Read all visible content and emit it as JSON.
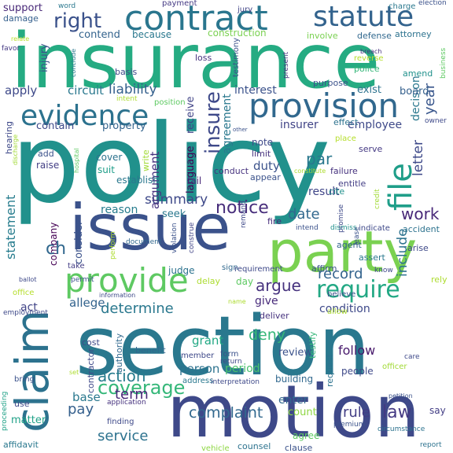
{
  "words": [
    {
      "text": "policy",
      "color": "#21918c"
    },
    {
      "text": "insurance",
      "color": "#25ab82"
    },
    {
      "text": "section",
      "color": "#2a788e"
    },
    {
      "text": "issue",
      "color": "#3b528b"
    },
    {
      "text": "motion",
      "color": "#3e4989"
    },
    {
      "text": "party",
      "color": "#7ad151"
    },
    {
      "text": "claim",
      "color": "#2c728e"
    },
    {
      "text": "contract",
      "color": "#2a768e"
    },
    {
      "text": "provision",
      "color": "#31688e"
    },
    {
      "text": "provide",
      "color": "#5ec962"
    },
    {
      "text": "evidence",
      "color": "#2c728e"
    },
    {
      "text": "statute",
      "color": "#33638d"
    },
    {
      "text": "file",
      "color": "#1f9e89"
    },
    {
      "text": "require",
      "color": "#22a884"
    },
    {
      "text": "coverage",
      "color": "#35b779"
    },
    {
      "text": "notice",
      "color": "#472d7b"
    },
    {
      "text": "right",
      "color": "#3b528b"
    },
    {
      "text": "insure",
      "color": "#3e4989"
    },
    {
      "text": "complaint",
      "color": "#31688e"
    },
    {
      "text": "argue",
      "color": "#46327e"
    },
    {
      "text": "record",
      "color": "#33638d"
    },
    {
      "text": "action",
      "color": "#287c8e"
    },
    {
      "text": "service",
      "color": "#2c728e"
    },
    {
      "text": "work",
      "color": "#482878"
    },
    {
      "text": "law",
      "color": "#443983"
    },
    {
      "text": "determine",
      "color": "#2a788e"
    },
    {
      "text": "deny",
      "color": "#35b779"
    },
    {
      "text": "rule",
      "color": "#433e85"
    },
    {
      "text": "statement",
      "color": "#287d8e"
    },
    {
      "text": "summary",
      "color": "#3e4989"
    },
    {
      "text": "par",
      "color": "#2a788e"
    },
    {
      "text": "date",
      "color": "#31688e"
    },
    {
      "text": "pay",
      "color": "#35608d"
    },
    {
      "text": "term",
      "color": "#482878"
    },
    {
      "text": "include",
      "color": "#2c728e"
    },
    {
      "text": "letter",
      "color": "#3e4989"
    },
    {
      "text": "liability",
      "color": "#35608d"
    },
    {
      "text": "year",
      "color": "#39568c"
    },
    {
      "text": "decision",
      "color": "#2a788e"
    },
    {
      "text": "employee",
      "color": "#3e4989"
    },
    {
      "text": "insurer",
      "color": "#414487"
    },
    {
      "text": "duty",
      "color": "#3b528b"
    },
    {
      "text": "result",
      "color": "#404688"
    },
    {
      "text": "language",
      "color": "#440154"
    },
    {
      "text": "argument",
      "color": "#46337f"
    },
    {
      "text": "agreement",
      "color": "#2a788e"
    },
    {
      "text": "follow",
      "color": "#481a6c"
    },
    {
      "text": "condition",
      "color": "#3e4989"
    },
    {
      "text": "grant",
      "color": "#22a884"
    },
    {
      "text": "person",
      "color": "#2c728e"
    },
    {
      "text": "period",
      "color": "#4ac16d"
    },
    {
      "text": "review",
      "color": "#3b528b"
    },
    {
      "text": "enter",
      "color": "#31688e"
    },
    {
      "text": "count",
      "color": "#8fd744"
    },
    {
      "text": "base",
      "color": "#2a788e"
    },
    {
      "text": "matter",
      "color": "#1fa187"
    },
    {
      "text": "act",
      "color": "#414487"
    },
    {
      "text": "allege",
      "color": "#33638d"
    },
    {
      "text": "give",
      "color": "#472a7a"
    },
    {
      "text": "interest",
      "color": "#3b528b"
    },
    {
      "text": "apply",
      "color": "#3e4989"
    },
    {
      "text": "circuit",
      "color": "#2a788e"
    },
    {
      "text": "contain",
      "color": "#3e4989"
    },
    {
      "text": "property",
      "color": "#33638d"
    },
    {
      "text": "seek",
      "color": "#2a788e"
    },
    {
      "text": "reason",
      "color": "#287d8e"
    },
    {
      "text": "company",
      "color": "#440154"
    },
    {
      "text": "consider",
      "color": "#3b528b"
    },
    {
      "text": "ch",
      "color": "#31688e"
    },
    {
      "text": "construction",
      "color": "#7ad151"
    },
    {
      "text": "because",
      "color": "#2a788e"
    },
    {
      "text": "contend",
      "color": "#33638d"
    },
    {
      "text": "receive",
      "color": "#414487"
    },
    {
      "text": "injury",
      "color": "#3b528b"
    },
    {
      "text": "note",
      "color": "#3e4989"
    },
    {
      "text": "limit",
      "color": "#46327e"
    },
    {
      "text": "exist",
      "color": "#2c728e"
    },
    {
      "text": "board",
      "color": "#35608d"
    },
    {
      "text": "purpose",
      "color": "#3b528b"
    },
    {
      "text": "support",
      "color": "#482878"
    },
    {
      "text": "payment",
      "color": "#443983"
    },
    {
      "text": "damage",
      "color": "#35608d"
    },
    {
      "text": "jury",
      "color": "#414487"
    },
    {
      "text": "charge",
      "color": "#2a788e"
    },
    {
      "text": "election",
      "color": "#3b528b"
    },
    {
      "text": "attorney",
      "color": "#2c728e"
    },
    {
      "text": "defense",
      "color": "#31688e"
    },
    {
      "text": "involve",
      "color": "#7ad151"
    },
    {
      "text": "loss",
      "color": "#46327e"
    },
    {
      "text": "amend",
      "color": "#21918c"
    },
    {
      "text": "business",
      "color": "#5ec962"
    },
    {
      "text": "police",
      "color": "#35b779"
    },
    {
      "text": "reverse",
      "color": "#b5de2b"
    },
    {
      "text": "breach",
      "color": "#46327e"
    },
    {
      "text": "basis",
      "color": "#3e4989"
    },
    {
      "text": "intent",
      "color": "#addc30"
    },
    {
      "text": "position",
      "color": "#5ec962"
    },
    {
      "text": "hearing",
      "color": "#3e4989"
    },
    {
      "text": "discharge",
      "color": "#a2da37"
    },
    {
      "text": "favor",
      "color": "#443983"
    },
    {
      "text": "relate",
      "color": "#b8de29"
    },
    {
      "text": "word",
      "color": "#2a788e"
    },
    {
      "text": "add",
      "color": "#3b528b"
    },
    {
      "text": "raise",
      "color": "#433e85"
    },
    {
      "text": "cover",
      "color": "#2c728e"
    },
    {
      "text": "suit",
      "color": "#1f9e89"
    },
    {
      "text": "write",
      "color": "#a2da37"
    },
    {
      "text": "establish",
      "color": "#2a788e"
    },
    {
      "text": "conduct",
      "color": "#46327e"
    },
    {
      "text": "fail",
      "color": "#482878"
    },
    {
      "text": "appear",
      "color": "#3b528b"
    },
    {
      "text": "failure",
      "color": "#46327e"
    },
    {
      "text": "entitle",
      "color": "#433e85"
    },
    {
      "text": "cite",
      "color": "#21918c"
    },
    {
      "text": "constitute",
      "color": "#addc30"
    },
    {
      "text": "place",
      "color": "#b5de2b"
    },
    {
      "text": "serve",
      "color": "#443983"
    },
    {
      "text": "owner",
      "color": "#3e4989"
    },
    {
      "text": "effect",
      "color": "#2c728e"
    },
    {
      "text": "fire",
      "color": "#472d7b"
    },
    {
      "text": "intend",
      "color": "#3b528b"
    },
    {
      "text": "dismiss",
      "color": "#21918c"
    },
    {
      "text": "indicate",
      "color": "#3e4989"
    },
    {
      "text": "accident",
      "color": "#2c728e"
    },
    {
      "text": "arise",
      "color": "#3e4989"
    },
    {
      "text": "agent",
      "color": "#33638d"
    },
    {
      "text": "assert",
      "color": "#2a788e"
    },
    {
      "text": "affirm",
      "color": "#3b528b"
    },
    {
      "text": "know",
      "color": "#3e4989"
    },
    {
      "text": "rely",
      "color": "#addc30"
    },
    {
      "text": "believe",
      "color": "#3b528b"
    },
    {
      "text": "allow",
      "color": "#addc30"
    },
    {
      "text": "testify",
      "color": "#35b779"
    },
    {
      "text": "deliver",
      "color": "#46327e"
    },
    {
      "text": "cost",
      "color": "#3e4989"
    },
    {
      "text": "benefit",
      "color": "#31688e"
    },
    {
      "text": "contractor",
      "color": "#3e4989"
    },
    {
      "text": "authority",
      "color": "#31688e"
    },
    {
      "text": "member",
      "color": "#3e4989"
    },
    {
      "text": "address",
      "color": "#2a788e"
    },
    {
      "text": "application",
      "color": "#46327e"
    },
    {
      "text": "finding",
      "color": "#3e4989"
    },
    {
      "text": "vehicle",
      "color": "#8fd744"
    },
    {
      "text": "counsel",
      "color": "#2c728e"
    },
    {
      "text": "agree",
      "color": "#5ec962"
    },
    {
      "text": "clause",
      "color": "#3b528b"
    },
    {
      "text": "building",
      "color": "#31688e"
    },
    {
      "text": "request",
      "color": "#2c728e"
    },
    {
      "text": "people",
      "color": "#3e4989"
    },
    {
      "text": "premium",
      "color": "#3b528b"
    },
    {
      "text": "say",
      "color": "#433e85"
    },
    {
      "text": "circumstance",
      "color": "#2c728e"
    },
    {
      "text": "petition",
      "color": "#3b528b"
    },
    {
      "text": "report",
      "color": "#2c728e"
    },
    {
      "text": "care",
      "color": "#3e4989"
    },
    {
      "text": "officer",
      "color": "#a2da37"
    },
    {
      "text": "affidavit",
      "color": "#2a788e"
    },
    {
      "text": "use",
      "color": "#3e4989"
    },
    {
      "text": "bring",
      "color": "#3b528b"
    },
    {
      "text": "proceeding",
      "color": "#1fa187"
    },
    {
      "text": "office",
      "color": "#b5de2b"
    },
    {
      "text": "ballot",
      "color": "#3e4989"
    },
    {
      "text": "permit",
      "color": "#3b528b"
    },
    {
      "text": "take",
      "color": "#433e85"
    },
    {
      "text": "judge",
      "color": "#2c728e"
    },
    {
      "text": "delay",
      "color": "#addc30"
    },
    {
      "text": "sign",
      "color": "#31688e"
    },
    {
      "text": "day",
      "color": "#5ec962"
    },
    {
      "text": "requirement",
      "color": "#3e4989"
    },
    {
      "text": "perform",
      "color": "#addc30"
    },
    {
      "text": "violation",
      "color": "#3b528b"
    },
    {
      "text": "construe",
      "color": "#414487"
    },
    {
      "text": "remand",
      "color": "#3e4989"
    },
    {
      "text": "document",
      "color": "#31688e"
    },
    {
      "text": "promise",
      "color": "#3e4989"
    },
    {
      "text": "lease",
      "color": "#3b528b"
    },
    {
      "text": "credit",
      "color": "#a2da37"
    },
    {
      "text": "employment",
      "color": "#3e4989"
    },
    {
      "text": "hospital",
      "color": "#5ec962"
    },
    {
      "text": "conclude",
      "color": "#2a788e"
    },
    {
      "text": "present",
      "color": "#46327e"
    },
    {
      "text": "testimony",
      "color": "#3b528b"
    },
    {
      "text": "name",
      "color": "#addc30"
    },
    {
      "text": "information",
      "color": "#3e4989"
    },
    {
      "text": "set",
      "color": "#addc30"
    },
    {
      "text": "form",
      "color": "#3b528b"
    },
    {
      "text": "return",
      "color": "#3e4989"
    },
    {
      "text": "interpretation",
      "color": "#3e4989"
    },
    {
      "text": "other",
      "color": "#3b528b"
    }
  ]
}
